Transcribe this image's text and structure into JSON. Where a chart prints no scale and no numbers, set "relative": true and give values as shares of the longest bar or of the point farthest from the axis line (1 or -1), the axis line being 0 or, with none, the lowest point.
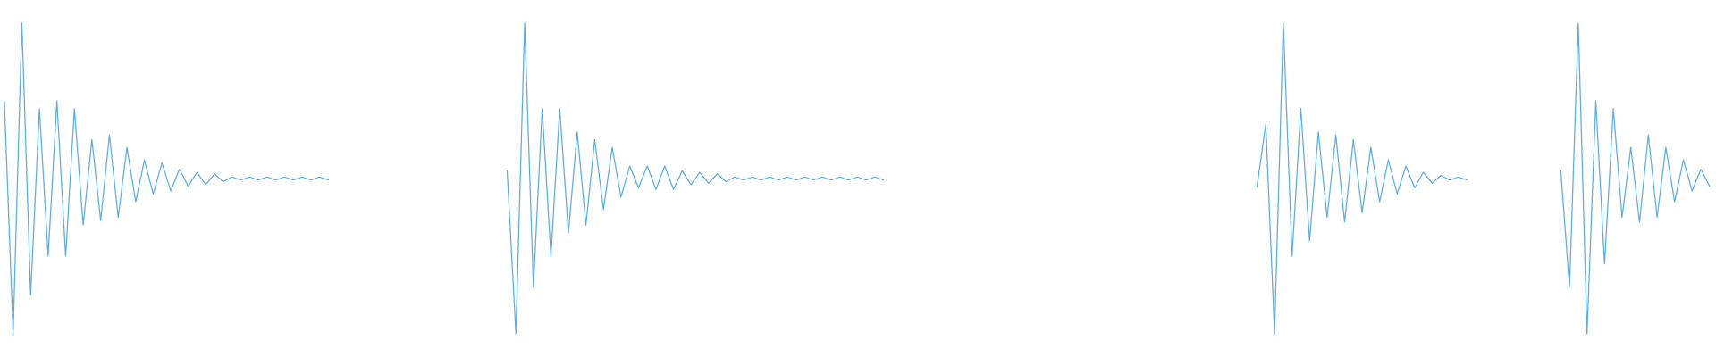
{
  "chart_data": [
    {
      "type": "line",
      "relative": true,
      "categories": [
        null,
        null,
        null,
        null,
        null,
        null,
        null,
        null,
        null,
        null,
        null,
        null,
        null,
        null,
        null,
        null,
        null,
        null,
        null,
        null,
        null,
        null,
        null,
        null,
        null,
        null,
        null,
        null,
        null,
        null,
        null,
        null,
        null,
        null,
        null,
        null,
        null,
        null
      ],
      "series": [
        {
          "color": "#5dade2",
          "values": [
            0.75,
            0,
            1,
            0.125,
            0.725,
            0.25,
            0.75,
            0.25,
            0.725,
            0.35,
            0.625,
            0.365,
            0.64,
            0.375,
            0.6,
            0.425,
            0.56,
            0.45,
            0.55,
            0.46,
            0.53,
            0.475,
            0.52,
            0.48,
            0.515,
            0.49,
            0.505,
            0.495,
            0.505,
            0.495,
            0.505,
            0.495,
            0.505,
            0.495,
            0.505,
            0.495,
            0.505,
            0.495
          ]
        }
      ]
    },
    {
      "type": "line",
      "relative": true,
      "categories": [
        null,
        null,
        null,
        null,
        null,
        null,
        null,
        null,
        null,
        null,
        null,
        null,
        null,
        null,
        null,
        null,
        null,
        null,
        null,
        null,
        null,
        null,
        null,
        null,
        null,
        null,
        null,
        null,
        null,
        null,
        null,
        null,
        null,
        null,
        null,
        null,
        null,
        null,
        null,
        null,
        null,
        null,
        null,
        null
      ],
      "series": [
        {
          "color": "#5dade2",
          "values": [
            0.525,
            0,
            1,
            0.15,
            0.725,
            0.25,
            0.725,
            0.325,
            0.65,
            0.35,
            0.625,
            0.4,
            0.6,
            0.44,
            0.54,
            0.47,
            0.54,
            0.465,
            0.54,
            0.465,
            0.525,
            0.48,
            0.52,
            0.485,
            0.515,
            0.49,
            0.505,
            0.495,
            0.505,
            0.495,
            0.505,
            0.495,
            0.505,
            0.495,
            0.505,
            0.495,
            0.505,
            0.495,
            0.505,
            0.495,
            0.505,
            0.495,
            0.505,
            0.495
          ]
        }
      ]
    },
    {
      "type": "line",
      "relative": true,
      "categories": [
        null,
        null,
        null,
        null,
        null,
        null,
        null,
        null,
        null,
        null,
        null,
        null,
        null,
        null,
        null,
        null,
        null,
        null,
        null,
        null,
        null,
        null,
        null,
        null,
        null
      ],
      "series": [
        {
          "color": "#5dade2",
          "values": [
            0.475,
            0.675,
            0,
            1,
            0.25,
            0.725,
            0.3,
            0.65,
            0.375,
            0.64,
            0.36,
            0.625,
            0.39,
            0.6,
            0.425,
            0.56,
            0.45,
            0.54,
            0.47,
            0.52,
            0.485,
            0.51,
            0.495,
            0.505,
            0.495
          ]
        }
      ]
    },
    {
      "type": "line",
      "relative": true,
      "categories": [
        null,
        null,
        null,
        null,
        null,
        null,
        null,
        null,
        null,
        null,
        null,
        null,
        null,
        null,
        null,
        null,
        null,
        null
      ],
      "series": [
        {
          "color": "#5dade2",
          "values": [
            0.525,
            0.15,
            1,
            0,
            0.75,
            0.225,
            0.725,
            0.375,
            0.6,
            0.36,
            0.64,
            0.375,
            0.6,
            0.425,
            0.56,
            0.46,
            0.53,
            0.475
          ]
        }
      ]
    }
  ]
}
